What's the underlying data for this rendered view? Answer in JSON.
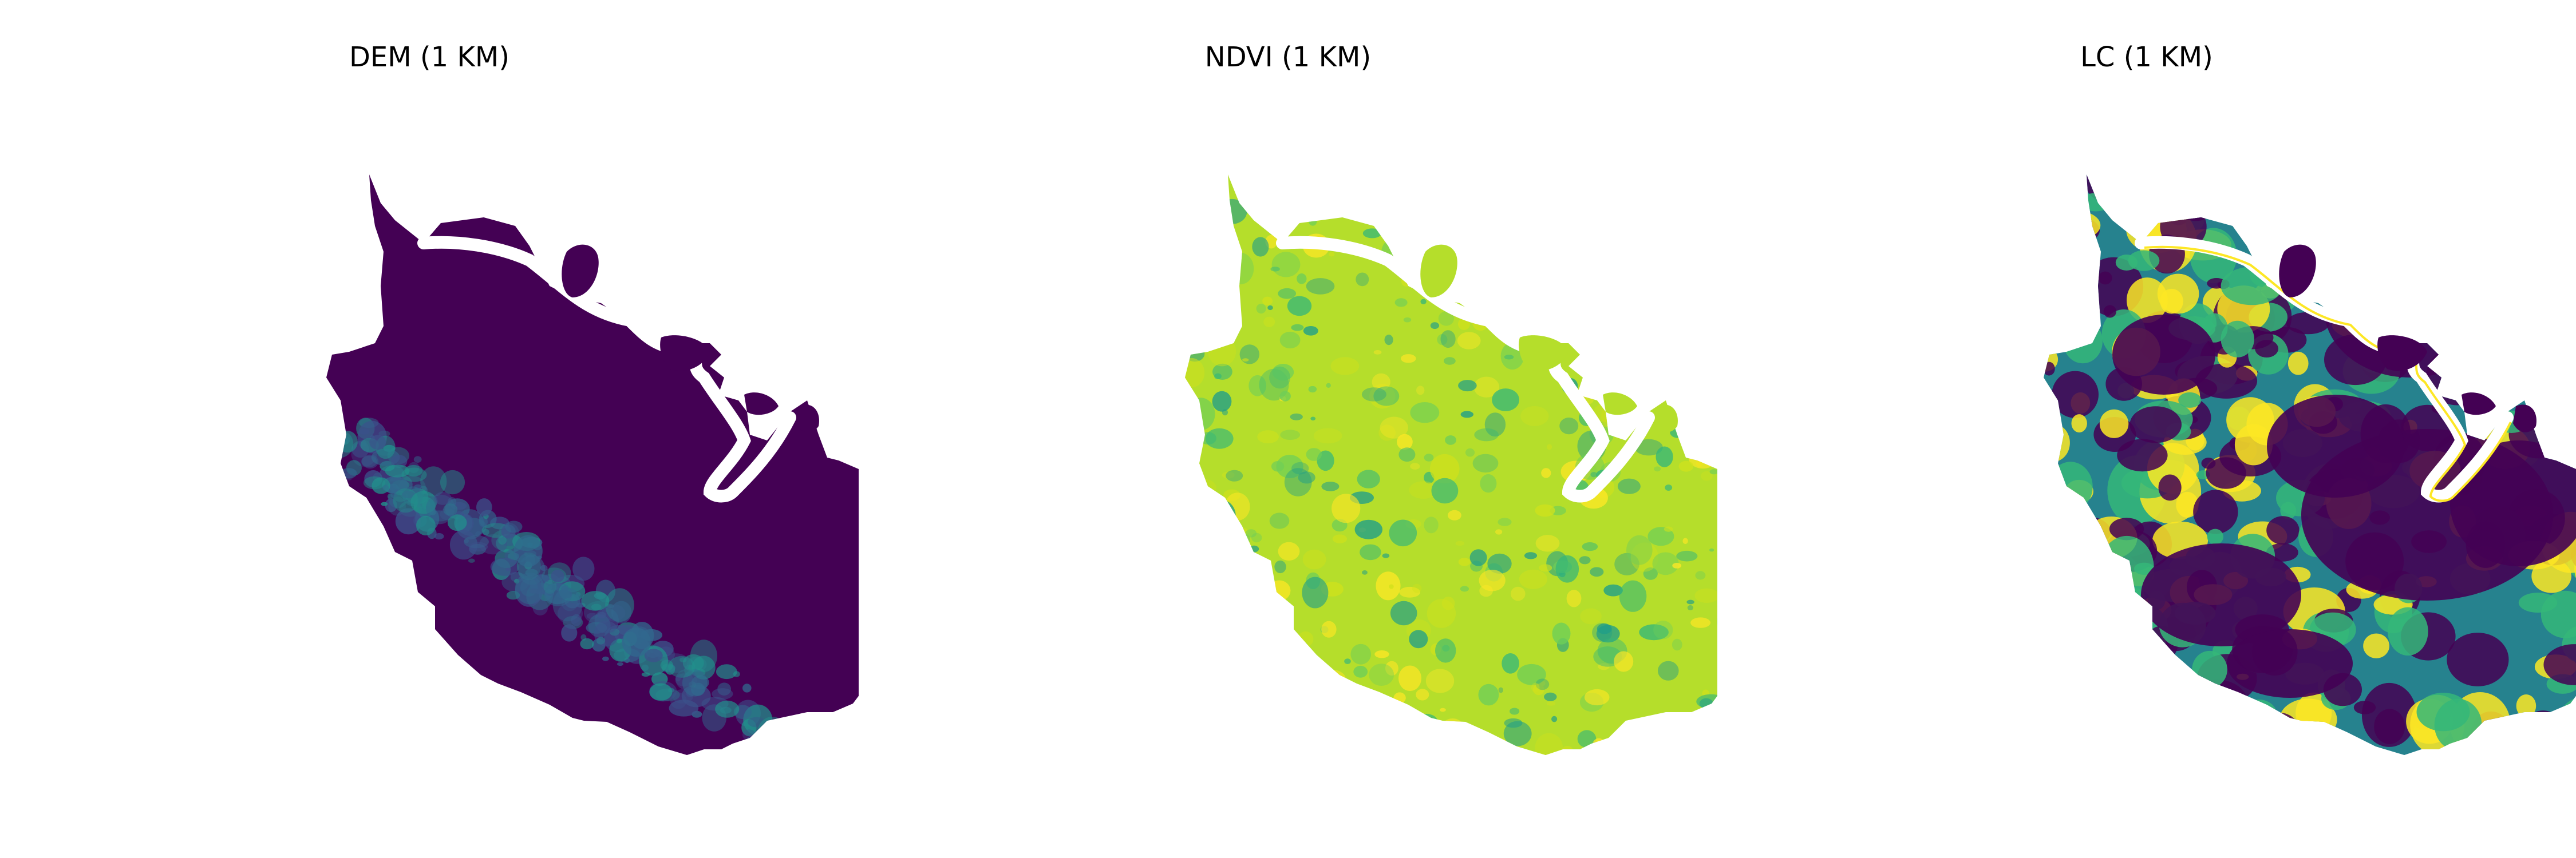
{
  "panels": [
    {
      "title": "DEM (1 KM)",
      "colormap": "viridis",
      "base_color": "#440154",
      "detail_colors": [
        "#3b528b",
        "#31688e",
        "#21918c"
      ]
    },
    {
      "title": "NDVI (1 KM)",
      "colormap": "viridis",
      "base_color": "#b5de2b",
      "detail_colors": [
        "#6ece58",
        "#35b779",
        "#1f9e89",
        "#fde725",
        "#d0e11c"
      ]
    },
    {
      "title": "LC (1 KM)",
      "colormap": "viridis",
      "base_color": "#26828e",
      "detail_colors": [
        "#440154",
        "#35b779",
        "#fde725"
      ]
    }
  ]
}
